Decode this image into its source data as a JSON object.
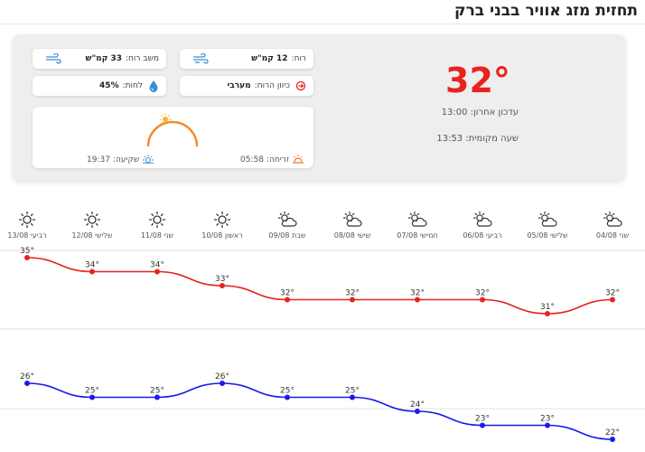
{
  "page_title": "תחזית מזג אוויר בבני ברק",
  "current": {
    "temperature": "32°",
    "last_update_label": "עדכון אחרון:",
    "last_update_time": "13:00",
    "local_time_label": "שעה מקומית:",
    "local_time": "13:53",
    "wind_label": "רוח:",
    "wind_value": "12 קמ\"ש",
    "gust_label": "משב רוח:",
    "gust_value": "33 קמ\"ש",
    "wind_dir_label": "כיוון הרוח:",
    "wind_dir_value": "מערבי",
    "humidity_label": "לחות:",
    "humidity_value": "45%",
    "sunrise_label": "זריחה:",
    "sunrise_time": "05:58",
    "sunset_label": "שקיעה:",
    "sunset_time": "19:37"
  },
  "forecast": [
    {
      "day": "שני",
      "date": "04/08",
      "icon": "partly-cloudy-icon",
      "high": 32,
      "low": 22
    },
    {
      "day": "שלישי",
      "date": "05/08",
      "icon": "partly-cloudy-icon",
      "high": 31,
      "low": 23
    },
    {
      "day": "רביעי",
      "date": "06/08",
      "icon": "partly-cloudy-icon",
      "high": 32,
      "low": 23
    },
    {
      "day": "חמישי",
      "date": "07/08",
      "icon": "partly-cloudy-icon",
      "high": 32,
      "low": 24
    },
    {
      "day": "שישי",
      "date": "08/08",
      "icon": "partly-cloudy-icon",
      "high": 32,
      "low": 25
    },
    {
      "day": "שבת",
      "date": "09/08",
      "icon": "partly-cloudy-icon",
      "high": 32,
      "low": 25
    },
    {
      "day": "ראשון",
      "date": "10/08",
      "icon": "sun-icon",
      "high": 33,
      "low": 26
    },
    {
      "day": "שני",
      "date": "11/08",
      "icon": "sun-icon",
      "high": 34,
      "low": 25
    },
    {
      "day": "שלישי",
      "date": "12/08",
      "icon": "sun-icon",
      "high": 34,
      "low": 25
    },
    {
      "day": "רביעי",
      "date": "13/08",
      "icon": "sun-icon",
      "high": 35,
      "low": 26
    }
  ],
  "colors": {
    "high": "#e8231f",
    "low": "#1a1aee",
    "accent": "#f58a2e"
  }
}
